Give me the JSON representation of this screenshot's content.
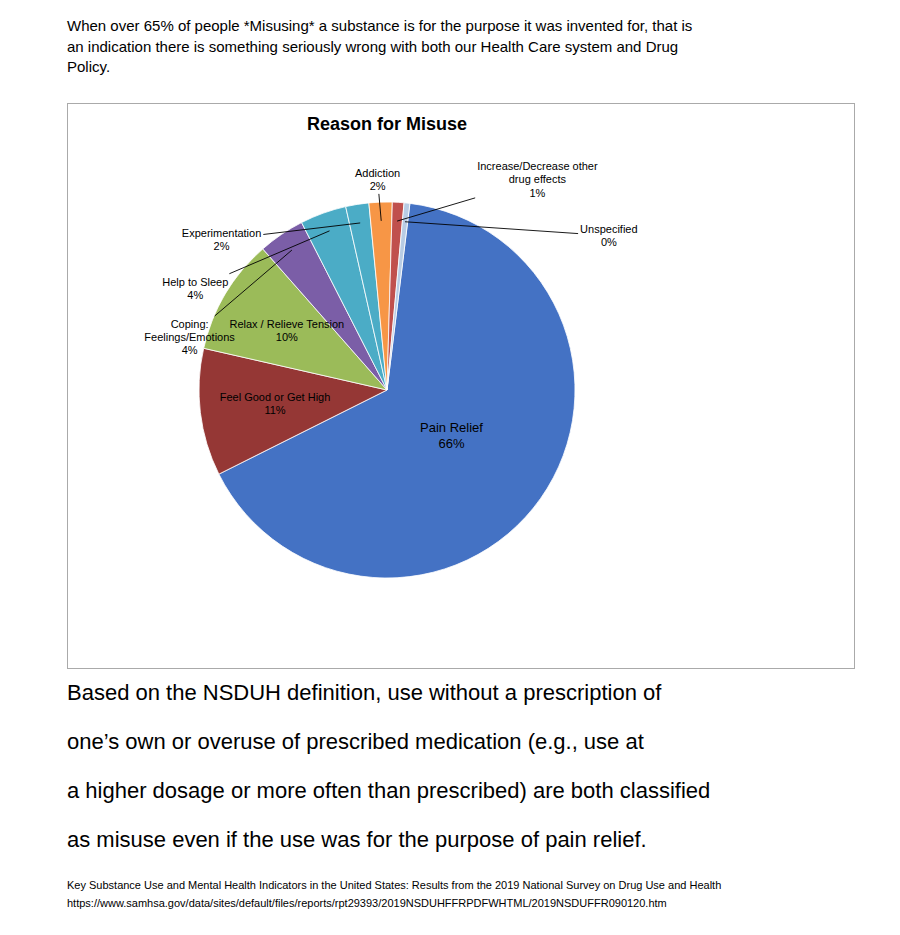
{
  "chart_data": {
    "type": "pie",
    "title": "Reason for Misuse",
    "subtitle": [
      "When over 65% of people *Misusing* a substance is for the purpose it was invented for, that is",
      "an indication there is something seriously wrong with both our Health Care system and Drug",
      "Policy."
    ],
    "categories": [
      "Pain Relief",
      "Feel Good or Get High",
      "Relax / Relieve Tension",
      "Coping:\nFeelings/Emotions",
      "Help to Sleep",
      "Experimentation",
      "Addiction",
      "Increase/Decrease other\ndrug effects",
      "Unspecified"
    ],
    "values": [
      66,
      11,
      10,
      4,
      4,
      2,
      2,
      1,
      0.5
    ],
    "value_labels": [
      "66%",
      "11%",
      "10%",
      "4%",
      "4%",
      "2%",
      "2%",
      "1%",
      "0%"
    ],
    "colors": [
      "#4472C4",
      "#953735",
      "#9BBB59",
      "#7B5EA7",
      "#4BACC6",
      "#4BACC6",
      "#F79646",
      "#C0504D",
      "#B8CCE4"
    ],
    "data_labels": true,
    "annotations": {
      "footer": [
        "Based on the NSDUH definition, use without a prescription of",
        "one’s own or overuse of prescribed medication (e.g., use at",
        "a higher dosage or more often than prescribed) are both classified",
        "as misuse even if the use was for the purpose of pain relief."
      ],
      "source": [
        "Key Substance Use and Mental Health Indicators in the United States: Results from the 2019 National Survey on Drug Use and Health",
        "https://www.samhsa.gov/data/sites/default/files/reports/rpt29393/2019NSDUHFFRPDFWHTML/2019NSDUFFR090120.htm"
      ]
    }
  }
}
